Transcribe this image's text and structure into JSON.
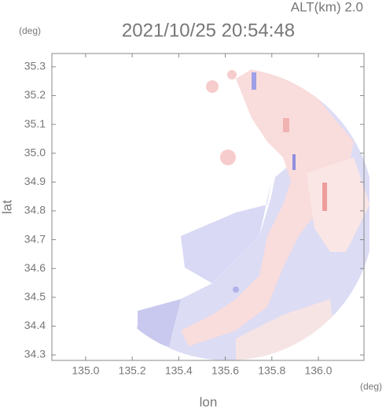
{
  "chart_data": {
    "type": "radar-image",
    "title": "2021/10/25 20:54:48",
    "subtitle": "ALT(km) 2.0",
    "x_label": "lon",
    "y_label": "lat",
    "x_unit": "(deg)",
    "y_unit": "(deg)",
    "xlim": [
      134.855,
      136.196
    ],
    "ylim": [
      34.281,
      35.346
    ],
    "xticks": [
      {
        "value": 135,
        "label": "135.0"
      },
      135.2,
      135.4,
      135.6,
      135.8,
      {
        "value": 136,
        "label": "136.0"
      }
    ],
    "yticks": [
      34.3,
      34.4,
      34.5,
      34.6,
      34.7,
      34.8,
      34.9,
      {
        "value": 35,
        "label": "35.0"
      },
      35.1,
      35.2,
      35.3
    ]
  }
}
